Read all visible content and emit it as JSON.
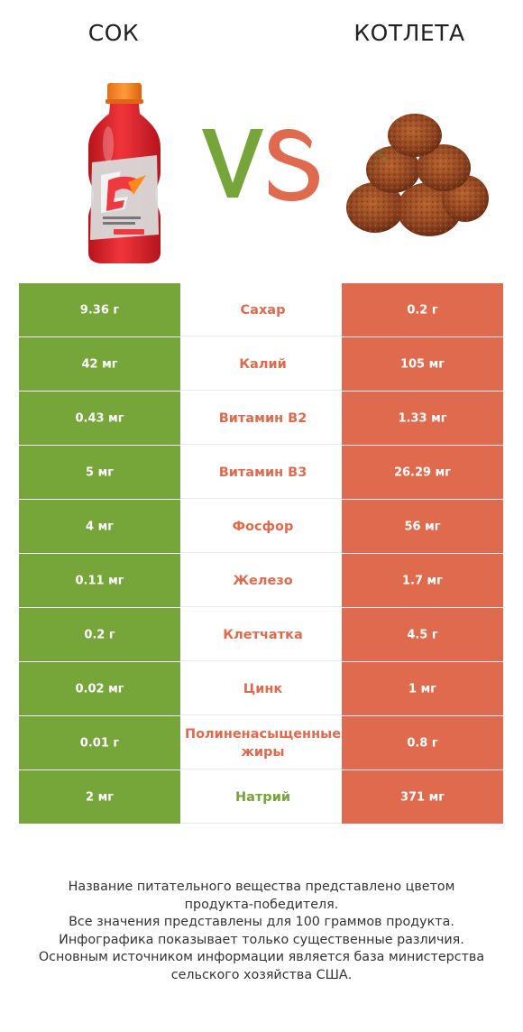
{
  "header": {
    "left_title": "сок",
    "right_title": "котлета"
  },
  "colors": {
    "left": "#76a539",
    "right": "#e06a4d",
    "vs_v": "#76a539",
    "vs_s": "#e06a4d"
  },
  "chart_data": {
    "type": "table",
    "columns": [
      "сок",
      "",
      "котлета"
    ],
    "rows": [
      {
        "nutrient": "Сахар",
        "left": "9.36 г",
        "right": "0.2 г",
        "winner": "right"
      },
      {
        "nutrient": "Калий",
        "left": "42 мг",
        "right": "105 мг",
        "winner": "right"
      },
      {
        "nutrient": "Витамин B2",
        "left": "0.43 мг",
        "right": "1.33 мг",
        "winner": "right"
      },
      {
        "nutrient": "Витамин B3",
        "left": "5 мг",
        "right": "26.29 мг",
        "winner": "right"
      },
      {
        "nutrient": "Фосфор",
        "left": "4 мг",
        "right": "56 мг",
        "winner": "right"
      },
      {
        "nutrient": "Железо",
        "left": "0.11 мг",
        "right": "1.7 мг",
        "winner": "right"
      },
      {
        "nutrient": "Клетчатка",
        "left": "0.2 г",
        "right": "4.5 г",
        "winner": "right"
      },
      {
        "nutrient": "Цинк",
        "left": "0.02 мг",
        "right": "1 мг",
        "winner": "right"
      },
      {
        "nutrient": "Полиненасыщенные жиры",
        "left": "0.01 г",
        "right": "0.8 г",
        "winner": "right"
      },
      {
        "nutrient": "Натрий",
        "left": "2 мг",
        "right": "371 мг",
        "winner": "left"
      }
    ]
  },
  "footer": {
    "lines": [
      "Название питательного вещества представлено цветом",
      "продукта-победителя.",
      "Все значения представлены для 100 граммов продукта.",
      "Инфографика показывает только существенные различия.",
      "Основным источником информации является база министерства",
      "сельского хозяйства США."
    ]
  }
}
